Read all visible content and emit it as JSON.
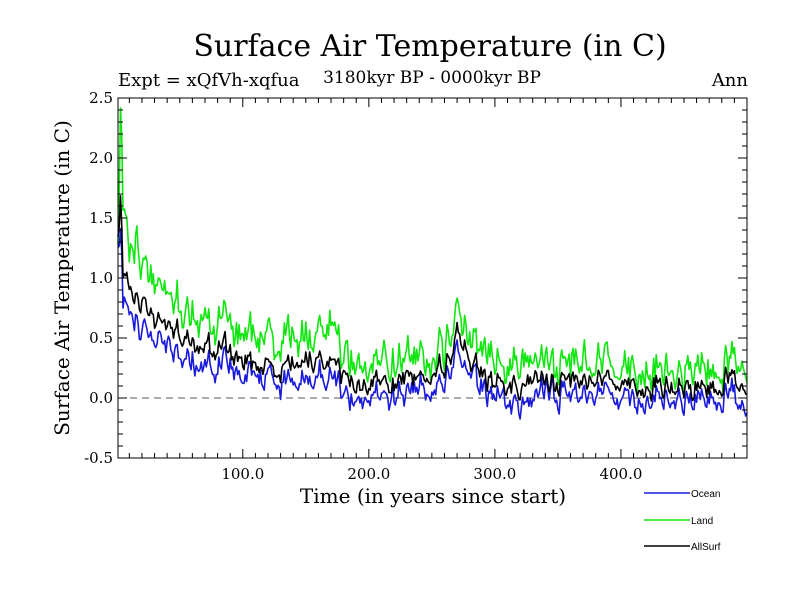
{
  "chart_data": {
    "type": "line",
    "title": "Surface Air Temperature (in C)",
    "experiment_label": "Expt = xQfVh-xqfua",
    "period_label": "3180kyr BP - 0000kyr BP",
    "season_label": "Ann",
    "xlabel": "Time (in years since start)",
    "ylabel": "Surface Air Temperature (in C)",
    "xlim": [
      1,
      500
    ],
    "ylim": [
      -0.5,
      2.5
    ],
    "x_ticks": [
      100,
      200,
      300,
      400
    ],
    "x_tick_labels": [
      "100.0",
      "200.0",
      "300.0",
      "400.0"
    ],
    "y_ticks": [
      -0.5,
      0.0,
      0.5,
      1.0,
      1.5,
      2.0,
      2.5
    ],
    "y_tick_labels": [
      "-0.5",
      "0.0",
      "0.5",
      "1.0",
      "1.5",
      "2.0",
      "2.5"
    ],
    "reference_line": 0.0,
    "legend_position": "bottom-right",
    "series": [
      {
        "name": "Ocean",
        "color": "#1a1adc",
        "anchors": [
          [
            1,
            1.2
          ],
          [
            3,
            1.33
          ],
          [
            5,
            0.8
          ],
          [
            10,
            0.75
          ],
          [
            15,
            0.65
          ],
          [
            20,
            0.6
          ],
          [
            30,
            0.5
          ],
          [
            40,
            0.45
          ],
          [
            50,
            0.4
          ],
          [
            60,
            0.35
          ],
          [
            70,
            0.3
          ],
          [
            80,
            0.28
          ],
          [
            90,
            0.25
          ],
          [
            100,
            0.2
          ],
          [
            110,
            0.18
          ],
          [
            120,
            0.15
          ],
          [
            130,
            0.15
          ],
          [
            140,
            0.15
          ],
          [
            150,
            0.18
          ],
          [
            160,
            0.2
          ],
          [
            170,
            0.2
          ],
          [
            175,
            0.15
          ],
          [
            180,
            0.05
          ],
          [
            190,
            0.0
          ],
          [
            200,
            -0.02
          ],
          [
            210,
            0.02
          ],
          [
            220,
            0.05
          ],
          [
            230,
            0.05
          ],
          [
            240,
            0.1
          ],
          [
            250,
            0.12
          ],
          [
            260,
            0.15
          ],
          [
            270,
            0.35
          ],
          [
            275,
            0.3
          ],
          [
            280,
            0.15
          ],
          [
            290,
            0.05
          ],
          [
            300,
            0.0
          ],
          [
            310,
            -0.02
          ],
          [
            320,
            -0.05
          ],
          [
            330,
            0.0
          ],
          [
            340,
            0.05
          ],
          [
            350,
            0.0
          ],
          [
            360,
            0.05
          ],
          [
            370,
            0.08
          ],
          [
            380,
            0.05
          ],
          [
            390,
            0.05
          ],
          [
            400,
            0.05
          ],
          [
            410,
            0.02
          ],
          [
            420,
            0.0
          ],
          [
            430,
            0.0
          ],
          [
            440,
            -0.02
          ],
          [
            450,
            -0.05
          ],
          [
            460,
            -0.05
          ],
          [
            470,
            0.0
          ],
          [
            480,
            0.05
          ],
          [
            490,
            0.05
          ],
          [
            500,
            -0.05
          ]
        ]
      },
      {
        "name": "Land",
        "color": "#11e611",
        "anchors": [
          [
            1,
            1.3
          ],
          [
            3,
            2.35
          ],
          [
            5,
            1.6
          ],
          [
            10,
            1.3
          ],
          [
            15,
            1.3
          ],
          [
            20,
            1.15
          ],
          [
            30,
            1.0
          ],
          [
            40,
            0.9
          ],
          [
            50,
            0.8
          ],
          [
            60,
            0.75
          ],
          [
            70,
            0.7
          ],
          [
            80,
            0.65
          ],
          [
            90,
            0.6
          ],
          [
            100,
            0.55
          ],
          [
            110,
            0.5
          ],
          [
            120,
            0.5
          ],
          [
            130,
            0.5
          ],
          [
            140,
            0.55
          ],
          [
            150,
            0.55
          ],
          [
            160,
            0.6
          ],
          [
            170,
            0.65
          ],
          [
            175,
            0.6
          ],
          [
            180,
            0.35
          ],
          [
            190,
            0.3
          ],
          [
            200,
            0.25
          ],
          [
            210,
            0.3
          ],
          [
            220,
            0.3
          ],
          [
            230,
            0.35
          ],
          [
            240,
            0.4
          ],
          [
            250,
            0.4
          ],
          [
            260,
            0.45
          ],
          [
            270,
            0.65
          ],
          [
            275,
            0.6
          ],
          [
            280,
            0.45
          ],
          [
            290,
            0.35
          ],
          [
            300,
            0.3
          ],
          [
            310,
            0.25
          ],
          [
            320,
            0.3
          ],
          [
            330,
            0.35
          ],
          [
            340,
            0.3
          ],
          [
            350,
            0.25
          ],
          [
            360,
            0.3
          ],
          [
            370,
            0.35
          ],
          [
            380,
            0.3
          ],
          [
            390,
            0.3
          ],
          [
            400,
            0.3
          ],
          [
            410,
            0.25
          ],
          [
            420,
            0.25
          ],
          [
            430,
            0.25
          ],
          [
            440,
            0.2
          ],
          [
            450,
            0.2
          ],
          [
            460,
            0.2
          ],
          [
            470,
            0.25
          ],
          [
            480,
            0.3
          ],
          [
            490,
            0.4
          ],
          [
            500,
            0.25
          ]
        ]
      },
      {
        "name": "AllSurf",
        "color": "#000000",
        "anchors": [
          [
            1,
            1.3
          ],
          [
            3,
            1.65
          ],
          [
            5,
            1.0
          ],
          [
            10,
            0.95
          ],
          [
            15,
            0.85
          ],
          [
            20,
            0.8
          ],
          [
            30,
            0.65
          ],
          [
            40,
            0.6
          ],
          [
            50,
            0.55
          ],
          [
            60,
            0.5
          ],
          [
            70,
            0.45
          ],
          [
            80,
            0.42
          ],
          [
            90,
            0.38
          ],
          [
            100,
            0.32
          ],
          [
            110,
            0.28
          ],
          [
            120,
            0.27
          ],
          [
            130,
            0.27
          ],
          [
            140,
            0.3
          ],
          [
            150,
            0.32
          ],
          [
            160,
            0.35
          ],
          [
            170,
            0.35
          ],
          [
            175,
            0.3
          ],
          [
            180,
            0.18
          ],
          [
            190,
            0.12
          ],
          [
            200,
            0.1
          ],
          [
            210,
            0.12
          ],
          [
            220,
            0.15
          ],
          [
            230,
            0.18
          ],
          [
            240,
            0.2
          ],
          [
            250,
            0.22
          ],
          [
            260,
            0.25
          ],
          [
            270,
            0.5
          ],
          [
            275,
            0.45
          ],
          [
            280,
            0.28
          ],
          [
            290,
            0.18
          ],
          [
            300,
            0.12
          ],
          [
            310,
            0.1
          ],
          [
            320,
            0.1
          ],
          [
            330,
            0.15
          ],
          [
            340,
            0.15
          ],
          [
            350,
            0.1
          ],
          [
            360,
            0.15
          ],
          [
            370,
            0.2
          ],
          [
            380,
            0.15
          ],
          [
            390,
            0.15
          ],
          [
            400,
            0.15
          ],
          [
            410,
            0.12
          ],
          [
            420,
            0.1
          ],
          [
            430,
            0.1
          ],
          [
            440,
            0.08
          ],
          [
            450,
            0.05
          ],
          [
            460,
            0.05
          ],
          [
            470,
            0.1
          ],
          [
            480,
            0.15
          ],
          [
            490,
            0.2
          ],
          [
            500,
            0.1
          ]
        ]
      }
    ]
  }
}
